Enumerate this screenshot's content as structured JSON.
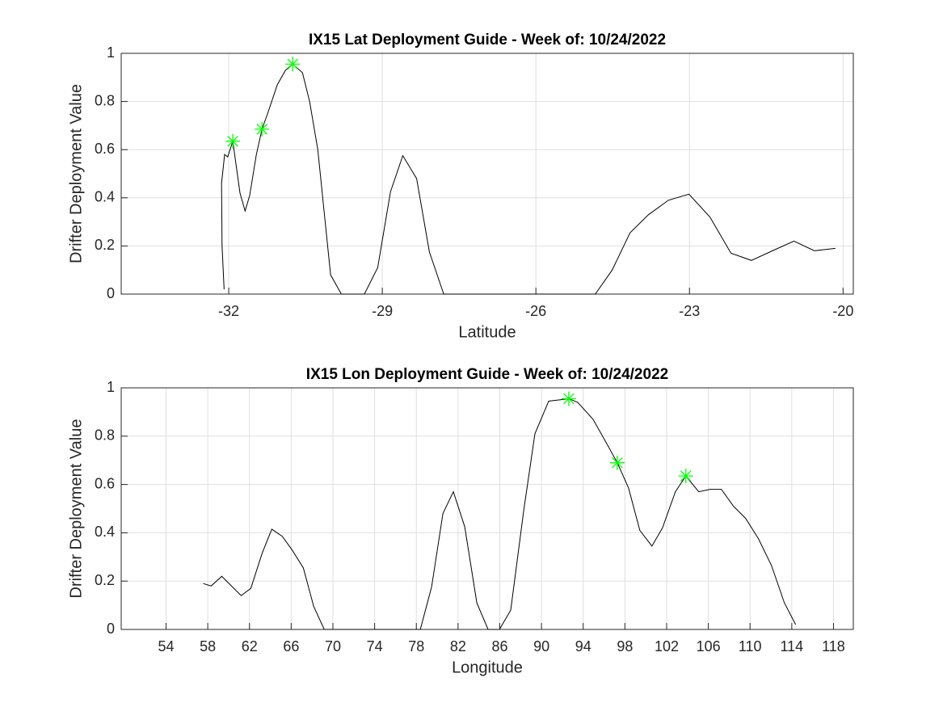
{
  "chart_data": [
    {
      "type": "line",
      "title": "IX15 Lat Deployment Guide - Week of: 10/24/2022",
      "xlabel": "Latitude",
      "ylabel": "Drifter Deployment Value",
      "xlim": [
        -34.1,
        -19.8
      ],
      "ylim": [
        0,
        1
      ],
      "xticks": [
        -32,
        -29,
        -26,
        -23,
        -20
      ],
      "yticks": [
        0,
        0.2,
        0.4,
        0.6,
        0.8,
        1
      ],
      "grid": true,
      "series": [
        {
          "color": "#000000",
          "marker": "none",
          "x": [
            -32.09,
            -32.13,
            -32.14,
            -32.08,
            -32.02,
            -31.92,
            -31.78,
            -31.68,
            -31.59,
            -31.46,
            -31.35,
            -31.24,
            -31.05,
            -30.89,
            -30.75,
            -30.56,
            -30.42,
            -30.26,
            -30.14,
            -30.01,
            -29.8,
            -29.35,
            -29.09,
            -28.84,
            -28.6,
            -28.33,
            -28.08,
            -27.8,
            -24.84,
            -24.51,
            -24.16,
            -23.8,
            -23.41,
            -23.01,
            -22.6,
            -22.19,
            -21.79,
            -21.38,
            -20.96,
            -20.56,
            -20.15
          ],
          "values": [
            0.02,
            0.2,
            0.46,
            0.58,
            0.57,
            0.635,
            0.42,
            0.345,
            0.41,
            0.58,
            0.685,
            0.75,
            0.87,
            0.93,
            0.955,
            0.92,
            0.8,
            0.6,
            0.35,
            0.08,
            0,
            0,
            0.11,
            0.425,
            0.575,
            0.48,
            0.175,
            0,
            0,
            0.1,
            0.255,
            0.33,
            0.39,
            0.415,
            0.32,
            0.17,
            0.14,
            0.18,
            0.22,
            0.18,
            0.19
          ]
        },
        {
          "color": "#00ff00",
          "marker": "star",
          "x": [
            -31.92,
            -31.35,
            -30.75
          ],
          "values": [
            0.635,
            0.685,
            0.955
          ]
        }
      ]
    },
    {
      "type": "line",
      "title": "IX15 Lon Deployment Guide - Week of: 10/24/2022",
      "xlabel": "Longitude",
      "ylabel": "Drifter Deployment Value",
      "xlim": [
        49.7,
        119.9
      ],
      "ylim": [
        0,
        1
      ],
      "xticks": [
        54,
        58,
        62,
        66,
        70,
        74,
        78,
        82,
        86,
        90,
        94,
        98,
        102,
        106,
        110,
        114,
        118
      ],
      "yticks": [
        0,
        0.2,
        0.4,
        0.6,
        0.8,
        1
      ],
      "grid": true,
      "series": [
        {
          "color": "#000000",
          "marker": "none",
          "x": [
            57.56,
            58.33,
            59.34,
            61.2,
            62.13,
            63.21,
            64.14,
            65.15,
            66.07,
            67.16,
            68.16,
            69.17,
            78.38,
            79.46,
            80.55,
            81.55,
            82.64,
            83.8,
            84.88,
            85.97,
            87.05,
            88.29,
            89.37,
            90.69,
            92.62,
            93.47,
            94.94,
            96.18,
            97.27,
            98.35,
            99.43,
            100.59,
            101.6,
            102.84,
            103.84,
            105.08,
            106.17,
            107.25,
            108.41,
            109.57,
            110.81,
            112.05,
            113.29,
            114.37
          ],
          "values": [
            0.19,
            0.18,
            0.22,
            0.14,
            0.17,
            0.315,
            0.415,
            0.385,
            0.33,
            0.255,
            0.095,
            0,
            0,
            0.175,
            0.48,
            0.57,
            0.425,
            0.11,
            0,
            0,
            0.08,
            0.49,
            0.81,
            0.945,
            0.955,
            0.94,
            0.87,
            0.775,
            0.69,
            0.585,
            0.41,
            0.345,
            0.42,
            0.57,
            0.635,
            0.57,
            0.58,
            0.58,
            0.51,
            0.46,
            0.375,
            0.265,
            0.11,
            0.02
          ]
        },
        {
          "color": "#00ff00",
          "marker": "star",
          "x": [
            92.62,
            97.27,
            103.84
          ],
          "values": [
            0.955,
            0.69,
            0.635
          ]
        }
      ]
    }
  ]
}
